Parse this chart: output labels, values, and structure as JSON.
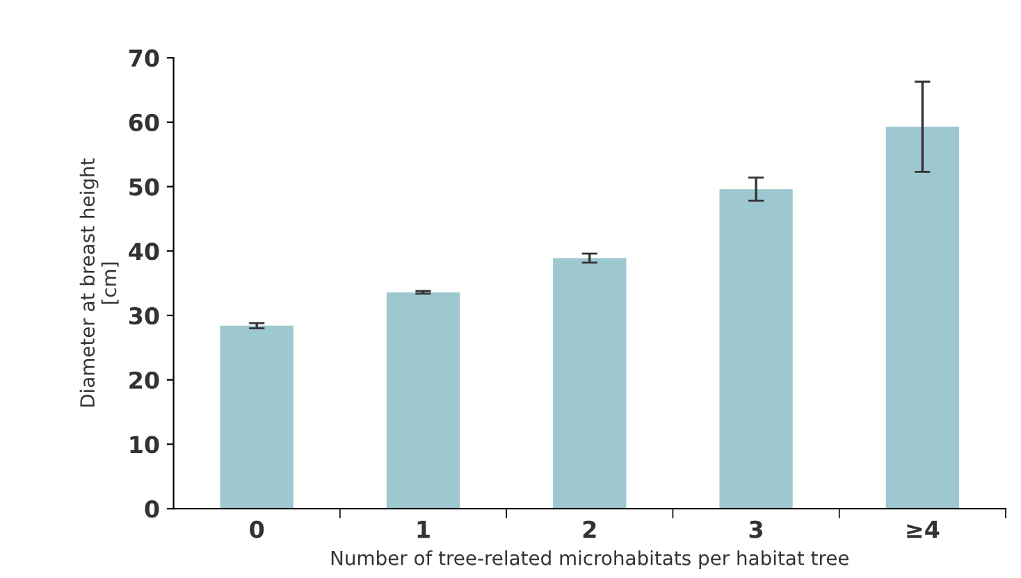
{
  "chart_data": {
    "type": "bar",
    "xlabel": "Number of tree-related microhabitats per habitat tree",
    "ylabel": "Diameter at breast height\n[cm]",
    "categories": [
      "0",
      "1",
      "2",
      "3",
      "≥4"
    ],
    "values": [
      28.4,
      33.6,
      38.9,
      49.6,
      59.3
    ],
    "errors": [
      0.4,
      0.2,
      0.7,
      1.8,
      7
    ],
    "color": "#9dc8cf",
    "ylim": [
      0,
      70
    ],
    "yticks": [
      0,
      10,
      20,
      30,
      40,
      50,
      60,
      70
    ],
    "grid": false,
    "legend": false
  }
}
